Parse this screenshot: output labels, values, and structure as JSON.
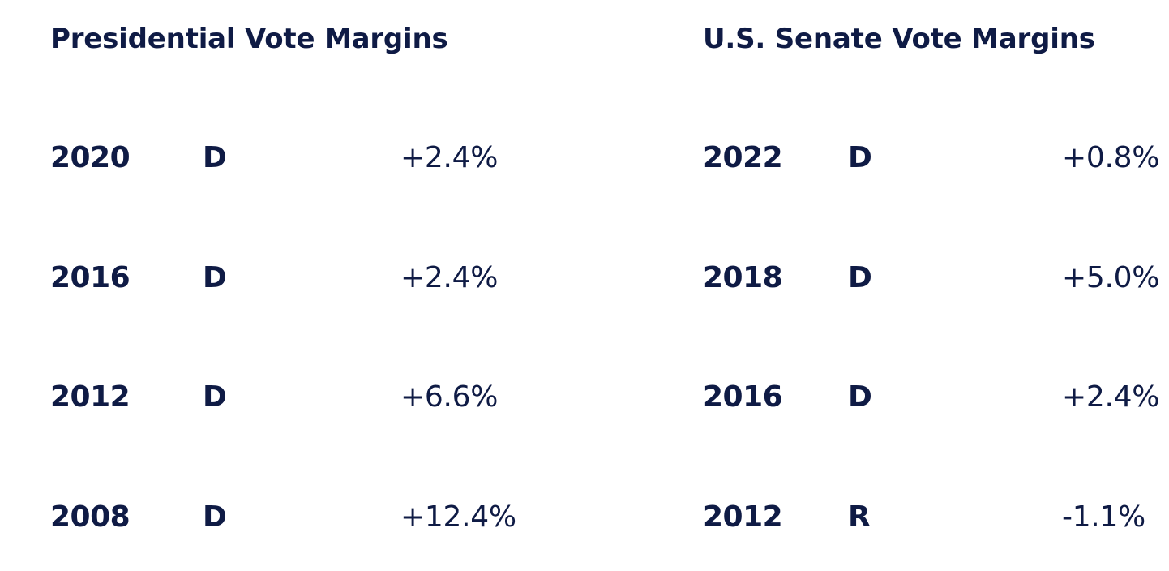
{
  "presidential": {
    "title": "Presidential Vote Margins",
    "rows": [
      {
        "year": "2020",
        "party": "D",
        "margin": "+2.4%"
      },
      {
        "year": "2016",
        "party": "D",
        "margin": "+2.4%"
      },
      {
        "year": "2012",
        "party": "D",
        "margin": "+6.6%"
      },
      {
        "year": "2008",
        "party": "D",
        "margin": "+12.4%"
      }
    ]
  },
  "senate": {
    "title": "U.S. Senate Vote Margins",
    "rows": [
      {
        "year": "2022",
        "party": "D",
        "margin": "+0.8%"
      },
      {
        "year": "2018",
        "party": "D",
        "margin": "+5.0%"
      },
      {
        "year": "2016",
        "party": "D",
        "margin": "+2.4%"
      },
      {
        "year": "2012",
        "party": "R",
        "margin": "-1.1%"
      }
    ]
  },
  "colors": {
    "text": "#0f1b45",
    "background": "#ffffff"
  }
}
